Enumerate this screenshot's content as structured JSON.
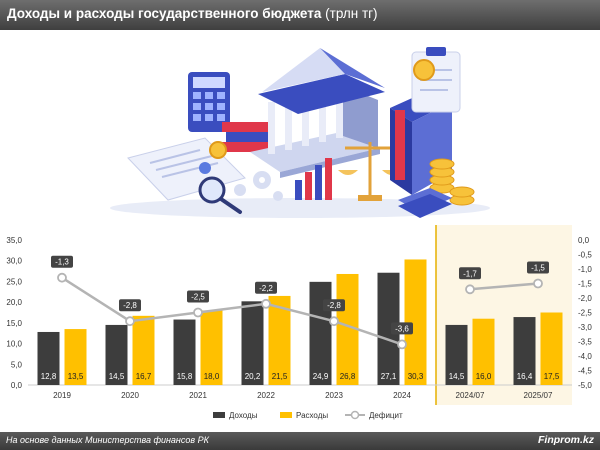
{
  "header": {
    "title": "Доходы и расходы государственного бюджета",
    "unit": "(трлн тг)"
  },
  "footer": {
    "source": "На основе данных Министерства финансов РК",
    "brand": "Finprom.kz"
  },
  "colors": {
    "income": "#3d3d3d",
    "expense": "#ffc000",
    "deficit": "#b4b4b4",
    "highlight_band": "#fdf6e4",
    "divider": "#e6b000"
  },
  "chart_data": {
    "type": "bar",
    "categories": [
      "2019",
      "2020",
      "2021",
      "2022",
      "2023",
      "2024",
      "2024/07",
      "2025/07"
    ],
    "series": [
      {
        "name": "Доходы",
        "values": [
          12.8,
          14.5,
          15.8,
          20.2,
          24.9,
          27.1,
          14.5,
          16.4
        ]
      },
      {
        "name": "Расходы",
        "values": [
          13.5,
          16.7,
          18.0,
          21.5,
          26.8,
          30.3,
          16.0,
          17.5
        ]
      },
      {
        "name": "Дефицит",
        "type": "line",
        "axis": "right",
        "values": [
          -1.3,
          -2.8,
          -2.5,
          -2.2,
          -2.8,
          -3.6,
          -1.7,
          -1.5
        ]
      }
    ],
    "value_labels": {
      "income": [
        "12,8",
        "14,5",
        "15,8",
        "20,2",
        "24,9",
        "27,1",
        "14,5",
        "16,4"
      ],
      "expense": [
        "13,5",
        "16,7",
        "18,0",
        "21,5",
        "26,8",
        "30,3",
        "16,0",
        "17,5"
      ],
      "deficit": [
        "-1,3",
        "-2,8",
        "-2,5",
        "-2,2",
        "-2,8",
        "-3,6",
        "-1,7",
        "-1,5"
      ]
    },
    "y_left": {
      "min": 0,
      "max": 35,
      "ticks": [
        "0,0",
        "5,0",
        "10,0",
        "15,0",
        "20,0",
        "25,0",
        "30,0",
        "35,0"
      ]
    },
    "y_right": {
      "min": -5,
      "max": 0,
      "ticks": [
        "0,0",
        "-0,5",
        "-1,0",
        "-1,5",
        "-2,0",
        "-2,5",
        "-3,0",
        "-3,5",
        "-4,0",
        "-4,5",
        "-5,0"
      ]
    },
    "legend": [
      "Доходы",
      "Расходы",
      "Дефицит"
    ],
    "legend_position": "bottom-center",
    "highlighted_categories": [
      "2024/07",
      "2025/07"
    ],
    "grid": false
  }
}
